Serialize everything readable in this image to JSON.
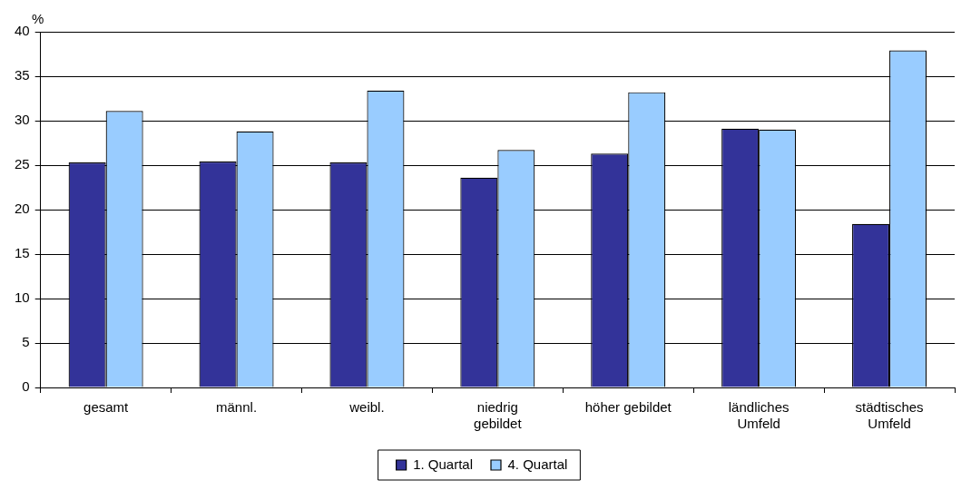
{
  "chart_data": {
    "type": "bar",
    "ylabel": "%",
    "categories": [
      "gesamt",
      "männl.",
      "weibl.",
      "niedrig\ngebildet",
      "höher gebildet",
      "ländliches\nUmfeld",
      "städtisches\nUmfeld"
    ],
    "series": [
      {
        "name": "1. Quartal",
        "color": "#333399",
        "values": [
          25.3,
          25.4,
          25.3,
          23.6,
          26.3,
          29.1,
          18.4
        ]
      },
      {
        "name": "4. Quartal",
        "color": "#99ccff",
        "values": [
          31.1,
          28.8,
          33.4,
          26.7,
          33.2,
          29.0,
          37.9
        ]
      }
    ],
    "ylim": [
      0,
      40
    ],
    "yticks": [
      0,
      5,
      10,
      15,
      20,
      25,
      30,
      35,
      40
    ],
    "grid": "y",
    "legend": "bottom"
  }
}
